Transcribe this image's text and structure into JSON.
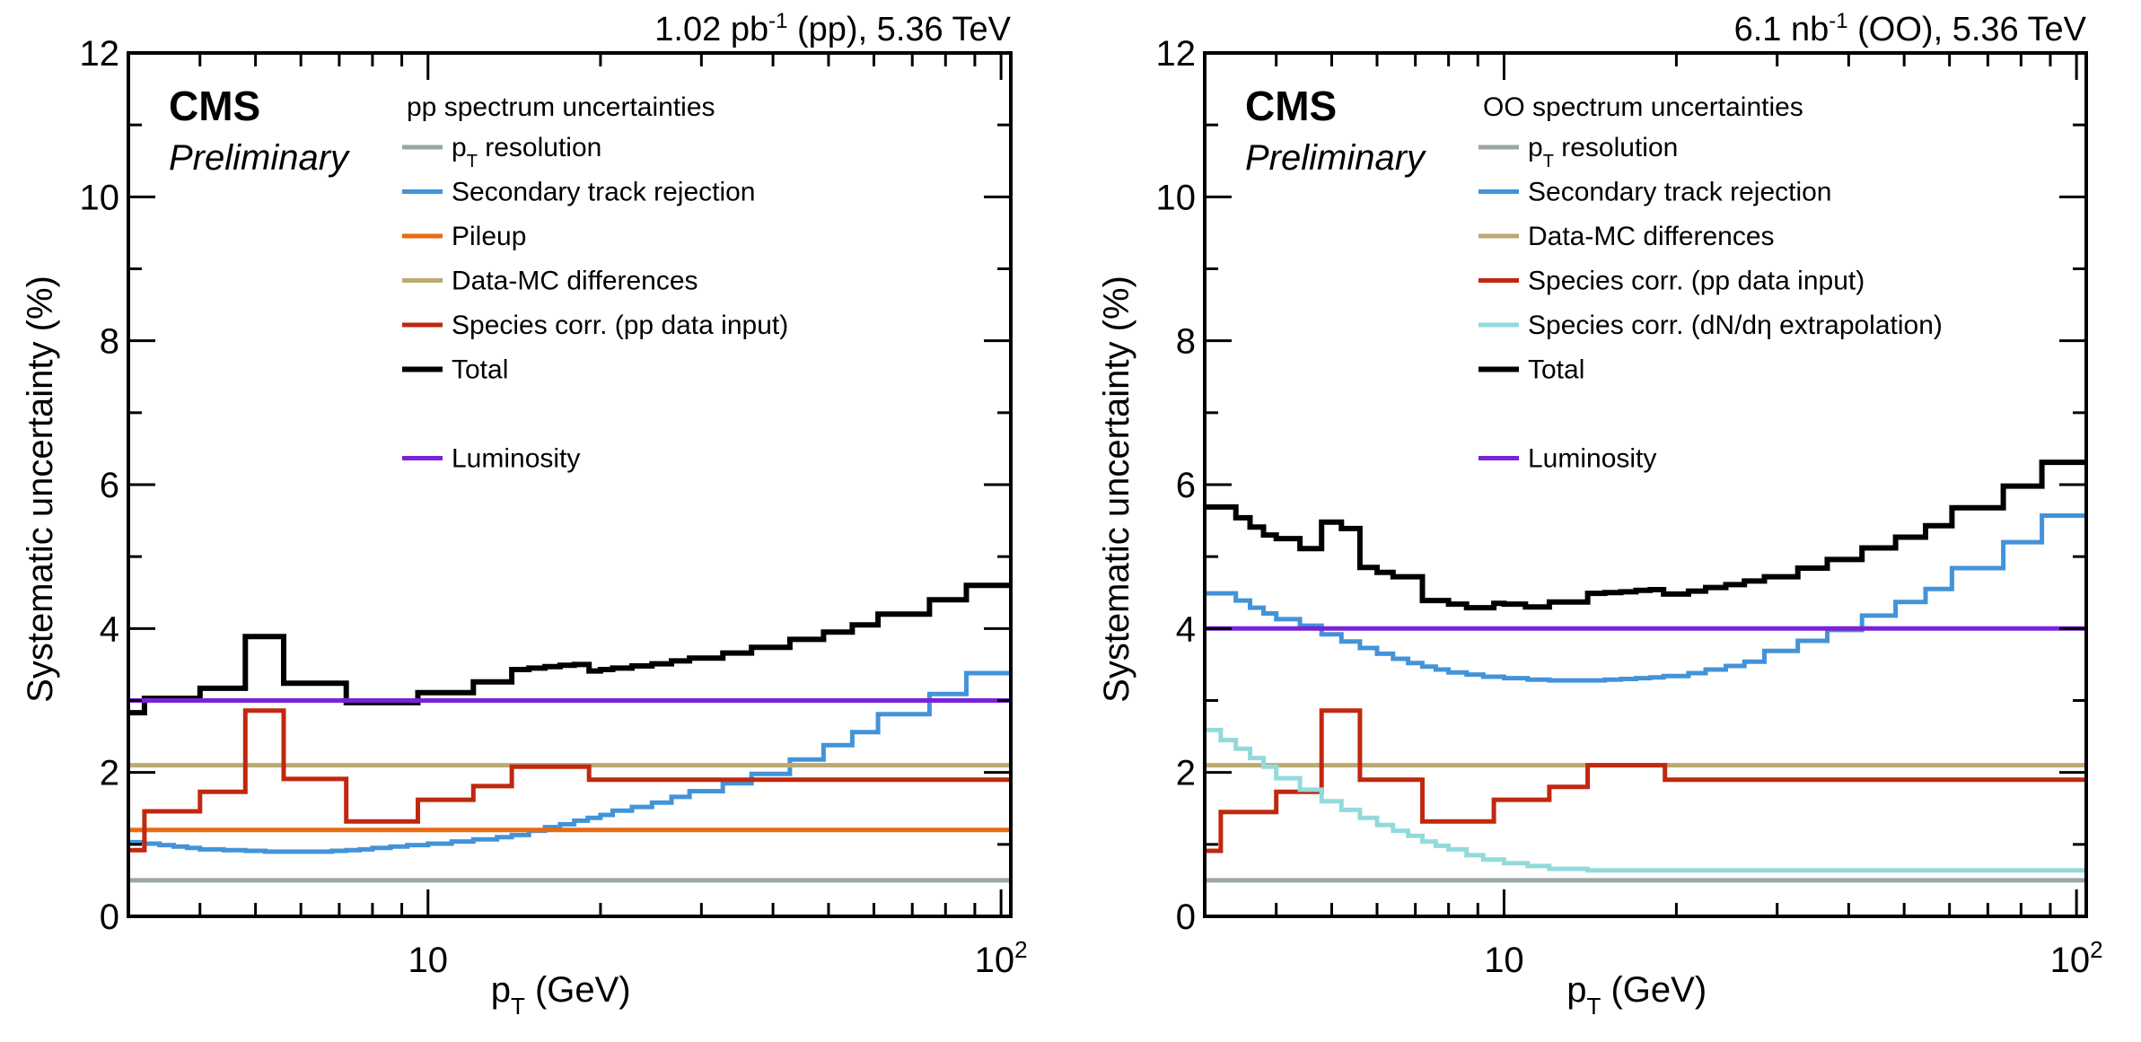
{
  "figure": {
    "panels": [
      {
        "id": "pp",
        "header": {
          "lumi": "1.02 pb",
          "lumi_sup": "-1",
          "rest": " (pp), 5.36 TeV"
        },
        "cms_label": "CMS",
        "preliminary_label": "Preliminary",
        "legend_title": "pp spectrum uncertainties"
      },
      {
        "id": "oo",
        "header": {
          "lumi": "6.1 nb",
          "lumi_sup": "-1",
          "rest": " (OO), 5.36 TeV"
        },
        "cms_label": "CMS",
        "preliminary_label": "Preliminary",
        "legend_title": "OO spectrum uncertainties"
      }
    ]
  },
  "chart_data": [
    {
      "type": "line",
      "title": "1.02 pb^-1 (pp), 5.36 TeV",
      "xlabel": "p_T (GeV)",
      "ylabel": "Systematic uncertainty (%)",
      "xscale": "log",
      "xlim": [
        3,
        104
      ],
      "ylim": [
        0,
        12
      ],
      "yticks": [
        0,
        2,
        4,
        6,
        8,
        10,
        12
      ],
      "xtick_labels": [
        {
          "value": 10,
          "label": "10",
          "sup": ""
        },
        {
          "value": 100,
          "label": "10",
          "sup": "2"
        }
      ],
      "legend_title": "pp spectrum uncertainties",
      "legend_position": "top-center",
      "series": [
        {
          "name": "pT resolution",
          "color": "#9aa6a4",
          "step": true,
          "edges": [
            3,
            104
          ],
          "values": [
            0.5
          ]
        },
        {
          "name": "Secondary track rejection",
          "color": "#4393d9",
          "step": true,
          "edges": [
            3,
            3.2,
            3.4,
            3.6,
            3.8,
            4.0,
            4.4,
            4.8,
            5.2,
            5.6,
            6.0,
            6.4,
            6.8,
            7.2,
            7.6,
            8.0,
            8.6,
            9.2,
            10,
            11,
            12,
            13.2,
            14,
            15,
            16,
            17,
            18,
            19,
            20,
            21,
            22.7,
            24.6,
            26.6,
            28.6,
            32.7,
            36.7,
            42.8,
            49,
            55,
            61,
            75,
            87,
            104
          ],
          "values": [
            1.03,
            1.01,
            0.99,
            0.97,
            0.95,
            0.93,
            0.92,
            0.91,
            0.9,
            0.9,
            0.9,
            0.9,
            0.91,
            0.92,
            0.93,
            0.95,
            0.97,
            0.99,
            1.01,
            1.04,
            1.07,
            1.1,
            1.13,
            1.19,
            1.24,
            1.28,
            1.33,
            1.37,
            1.41,
            1.47,
            1.52,
            1.58,
            1.66,
            1.74,
            1.85,
            1.98,
            2.18,
            2.38,
            2.56,
            2.81,
            3.09,
            3.38
          ]
        },
        {
          "name": "Pileup",
          "color": "#e86a10",
          "step": true,
          "edges": [
            3,
            104
          ],
          "values": [
            1.2
          ]
        },
        {
          "name": "Data-MC differences",
          "color": "#bcaa72",
          "step": true,
          "edges": [
            3,
            104
          ],
          "values": [
            2.1
          ]
        },
        {
          "name": "Species corr. (pp data input)",
          "color": "#c0280f",
          "step": true,
          "edges": [
            3,
            3.2,
            4.0,
            4.8,
            5.6,
            7.2,
            9.6,
            12,
            14,
            19.1,
            104
          ],
          "values": [
            0.92,
            1.46,
            1.73,
            2.86,
            1.91,
            1.32,
            1.62,
            1.81,
            2.08,
            1.9
          ]
        },
        {
          "name": "Total",
          "color": "#000000",
          "step": true,
          "edges": [
            3,
            3.2,
            4.0,
            4.8,
            5.6,
            7.2,
            9.6,
            12,
            14,
            15,
            16,
            17,
            18,
            19.1,
            20,
            21,
            22.7,
            24.6,
            26.6,
            28.6,
            32.7,
            36.7,
            42.8,
            49,
            55,
            61,
            75,
            87,
            104
          ],
          "values": [
            2.83,
            3.03,
            3.17,
            3.89,
            3.24,
            2.97,
            3.11,
            3.26,
            3.43,
            3.45,
            3.47,
            3.49,
            3.5,
            3.41,
            3.43,
            3.45,
            3.48,
            3.51,
            3.55,
            3.59,
            3.66,
            3.74,
            3.85,
            3.95,
            4.05,
            4.2,
            4.4,
            4.6
          ]
        },
        {
          "name": "Luminosity",
          "color": "#7b22d8",
          "step": true,
          "edges": [
            3,
            104
          ],
          "values": [
            3.0
          ]
        }
      ]
    },
    {
      "type": "line",
      "title": "6.1 nb^-1 (OO), 5.36 TeV",
      "xlabel": "p_T (GeV)",
      "ylabel": "Systematic uncertainty (%)",
      "xscale": "log",
      "xlim": [
        3,
        104
      ],
      "ylim": [
        0,
        12
      ],
      "yticks": [
        0,
        2,
        4,
        6,
        8,
        10,
        12
      ],
      "xtick_labels": [
        {
          "value": 10,
          "label": "10",
          "sup": ""
        },
        {
          "value": 100,
          "label": "10",
          "sup": "2"
        }
      ],
      "legend_title": "OO spectrum uncertainties",
      "legend_position": "top-center",
      "series": [
        {
          "name": "pT resolution",
          "color": "#9aa6a4",
          "step": true,
          "edges": [
            3,
            104
          ],
          "values": [
            0.5
          ]
        },
        {
          "name": "Secondary track rejection",
          "color": "#4393d9",
          "step": true,
          "edges": [
            3,
            3.4,
            3.6,
            3.8,
            4.0,
            4.4,
            4.8,
            5.2,
            5.6,
            6.0,
            6.4,
            6.8,
            7.2,
            7.6,
            8.0,
            8.6,
            9.2,
            10,
            11,
            12,
            13.2,
            14,
            15,
            16,
            17,
            18,
            19,
            21,
            22.5,
            24.4,
            26.3,
            28.5,
            32.6,
            36.7,
            42.2,
            48.3,
            54.5,
            60.6,
            74.5,
            87,
            104
          ],
          "values": [
            4.49,
            4.39,
            4.29,
            4.21,
            4.13,
            4.04,
            3.92,
            3.82,
            3.73,
            3.65,
            3.58,
            3.52,
            3.47,
            3.43,
            3.39,
            3.36,
            3.33,
            3.31,
            3.29,
            3.28,
            3.28,
            3.28,
            3.29,
            3.3,
            3.31,
            3.32,
            3.34,
            3.38,
            3.43,
            3.48,
            3.54,
            3.69,
            3.83,
            3.98,
            4.18,
            4.37,
            4.55,
            4.84,
            5.2,
            5.57
          ]
        },
        {
          "name": "Data-MC differences",
          "color": "#bcaa72",
          "step": true,
          "edges": [
            3,
            104
          ],
          "values": [
            2.1
          ]
        },
        {
          "name": "Species corr. (pp data input)",
          "color": "#c0280f",
          "step": true,
          "edges": [
            3,
            3.2,
            4.0,
            4.8,
            5.6,
            7.2,
            9.6,
            12,
            14,
            19.1,
            104
          ],
          "values": [
            0.91,
            1.45,
            1.73,
            2.86,
            1.9,
            1.32,
            1.62,
            1.8,
            2.1,
            1.9
          ]
        },
        {
          "name": "Species corr. (dN/dη extrapolation)",
          "color": "#93dada",
          "step": true,
          "edges": [
            3,
            3.2,
            3.4,
            3.6,
            3.8,
            4.0,
            4.4,
            4.8,
            5.2,
            5.6,
            6.0,
            6.4,
            6.8,
            7.2,
            7.6,
            8.0,
            8.6,
            9.2,
            10,
            11,
            12,
            14,
            104
          ],
          "values": [
            2.59,
            2.45,
            2.33,
            2.2,
            2.08,
            1.92,
            1.76,
            1.6,
            1.48,
            1.37,
            1.27,
            1.19,
            1.12,
            1.04,
            0.98,
            0.93,
            0.85,
            0.79,
            0.74,
            0.7,
            0.66,
            0.64
          ]
        },
        {
          "name": "Total",
          "color": "#000000",
          "step": true,
          "edges": [
            3,
            3.4,
            3.6,
            3.8,
            4.0,
            4.4,
            4.8,
            5.2,
            5.6,
            6.0,
            6.4,
            7.2,
            8.0,
            8.6,
            9.6,
            10,
            10.9,
            12,
            14,
            15,
            16,
            17,
            18,
            19,
            21,
            22.5,
            24.4,
            26.3,
            28.5,
            32.6,
            36.7,
            42.2,
            48.3,
            54.5,
            60.6,
            74.5,
            87,
            104
          ],
          "values": [
            5.69,
            5.54,
            5.41,
            5.3,
            5.25,
            5.11,
            5.48,
            5.39,
            4.85,
            4.78,
            4.72,
            4.39,
            4.34,
            4.29,
            4.35,
            4.34,
            4.3,
            4.37,
            4.49,
            4.5,
            4.51,
            4.53,
            4.54,
            4.48,
            4.52,
            4.57,
            4.61,
            4.66,
            4.72,
            4.84,
            4.96,
            5.12,
            5.27,
            5.43,
            5.68,
            5.98,
            6.31
          ]
        },
        {
          "name": "Luminosity",
          "color": "#7b22d8",
          "step": true,
          "edges": [
            3,
            104
          ],
          "values": [
            4.0
          ]
        }
      ]
    }
  ]
}
